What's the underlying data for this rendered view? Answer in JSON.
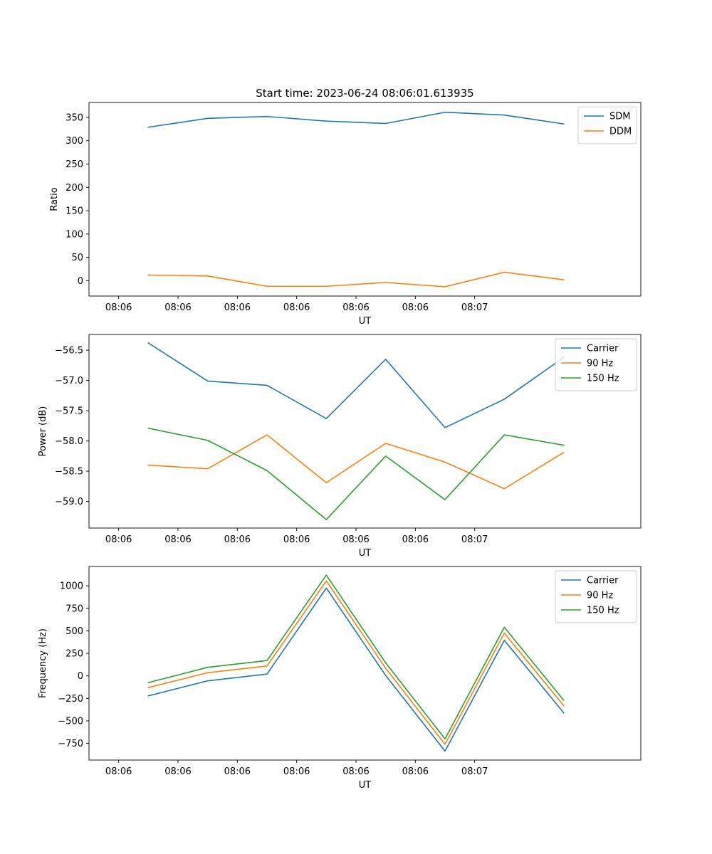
{
  "title": "Start time: 2023-06-24 08:06:01.613935",
  "colors": {
    "blue": "#1f77b4",
    "orange": "#ff7f0e",
    "green": "#2ca02c"
  },
  "chart_data": [
    {
      "type": "line",
      "title": "Start time: 2023-06-24 08:06:01.613935",
      "xlabel": "UT",
      "ylabel": "Ratio",
      "x_tick_labels": [
        "08:06",
        "08:06",
        "08:06",
        "08:06",
        "08:06",
        "08:06",
        "08:07"
      ],
      "y_ticks": [
        0,
        50,
        100,
        150,
        200,
        250,
        300,
        350
      ],
      "ylim": [
        -33,
        382
      ],
      "xlim": [
        0.5,
        9.8
      ],
      "grid": false,
      "legend": "upper right",
      "x": [
        1.5,
        2.5,
        3.5,
        4.5,
        5.5,
        6.5,
        7.5,
        8.5
      ],
      "series": [
        {
          "name": "SDM",
          "color": "#1f77b4",
          "values": [
            329,
            348,
            352,
            342,
            337,
            361,
            355,
            336
          ]
        },
        {
          "name": "DDM",
          "color": "#ff7f0e",
          "values": [
            12,
            10,
            -12,
            -12,
            -4,
            -13,
            18,
            2
          ]
        }
      ]
    },
    {
      "type": "line",
      "title": "",
      "xlabel": "UT",
      "ylabel": "Power (dB)",
      "x_tick_labels": [
        "08:06",
        "08:06",
        "08:06",
        "08:06",
        "08:06",
        "08:06",
        "08:07"
      ],
      "y_ticks": [
        -59.0,
        -58.5,
        -58.0,
        -57.5,
        -57.0,
        -56.5
      ],
      "y_tick_labels": [
        "−59.0",
        "−58.5",
        "−58.0",
        "−57.5",
        "−57.0",
        "−56.5"
      ],
      "ylim": [
        -59.44,
        -56.24
      ],
      "xlim": [
        0.5,
        9.8
      ],
      "grid": false,
      "legend": "upper right",
      "x": [
        1.5,
        2.5,
        3.5,
        4.5,
        5.5,
        6.5,
        7.5,
        8.5
      ],
      "series": [
        {
          "name": "Carrier",
          "color": "#1f77b4",
          "values": [
            -56.38,
            -57.01,
            -57.08,
            -57.63,
            -56.65,
            -57.78,
            -57.31,
            -56.62
          ]
        },
        {
          "name": "90 Hz",
          "color": "#ff7f0e",
          "values": [
            -58.4,
            -58.46,
            -57.9,
            -58.69,
            -58.04,
            -58.35,
            -58.79,
            -58.19
          ]
        },
        {
          "name": "150 Hz",
          "color": "#2ca02c",
          "values": [
            -57.79,
            -57.99,
            -58.49,
            -59.3,
            -58.25,
            -58.97,
            -57.9,
            -58.07
          ]
        }
      ]
    },
    {
      "type": "line",
      "title": "",
      "xlabel": "UT",
      "ylabel": "Frequency (Hz)",
      "x_tick_labels": [
        "08:06",
        "08:06",
        "08:06",
        "08:06",
        "08:06",
        "08:06",
        "08:07"
      ],
      "y_ticks": [
        -750,
        -500,
        -250,
        0,
        250,
        500,
        750,
        1000
      ],
      "y_tick_labels": [
        "−750",
        "−500",
        "−250",
        "0",
        "250",
        "500",
        "750",
        "1000"
      ],
      "ylim": [
        -935,
        1215
      ],
      "xlim": [
        0.5,
        9.8
      ],
      "grid": false,
      "legend": "upper right",
      "x": [
        1.5,
        2.5,
        3.5,
        4.5,
        5.5,
        6.5,
        7.5,
        8.5
      ],
      "series": [
        {
          "name": "Carrier",
          "color": "#1f77b4",
          "values": [
            -222,
            -55,
            20,
            975,
            5,
            -835,
            395,
            -410
          ]
        },
        {
          "name": "90 Hz",
          "color": "#ff7f0e",
          "values": [
            -130,
            35,
            110,
            1055,
            85,
            -760,
            475,
            -330
          ]
        },
        {
          "name": "150 Hz",
          "color": "#2ca02c",
          "values": [
            -75,
            95,
            170,
            1120,
            145,
            -700,
            540,
            -270
          ]
        }
      ]
    }
  ]
}
